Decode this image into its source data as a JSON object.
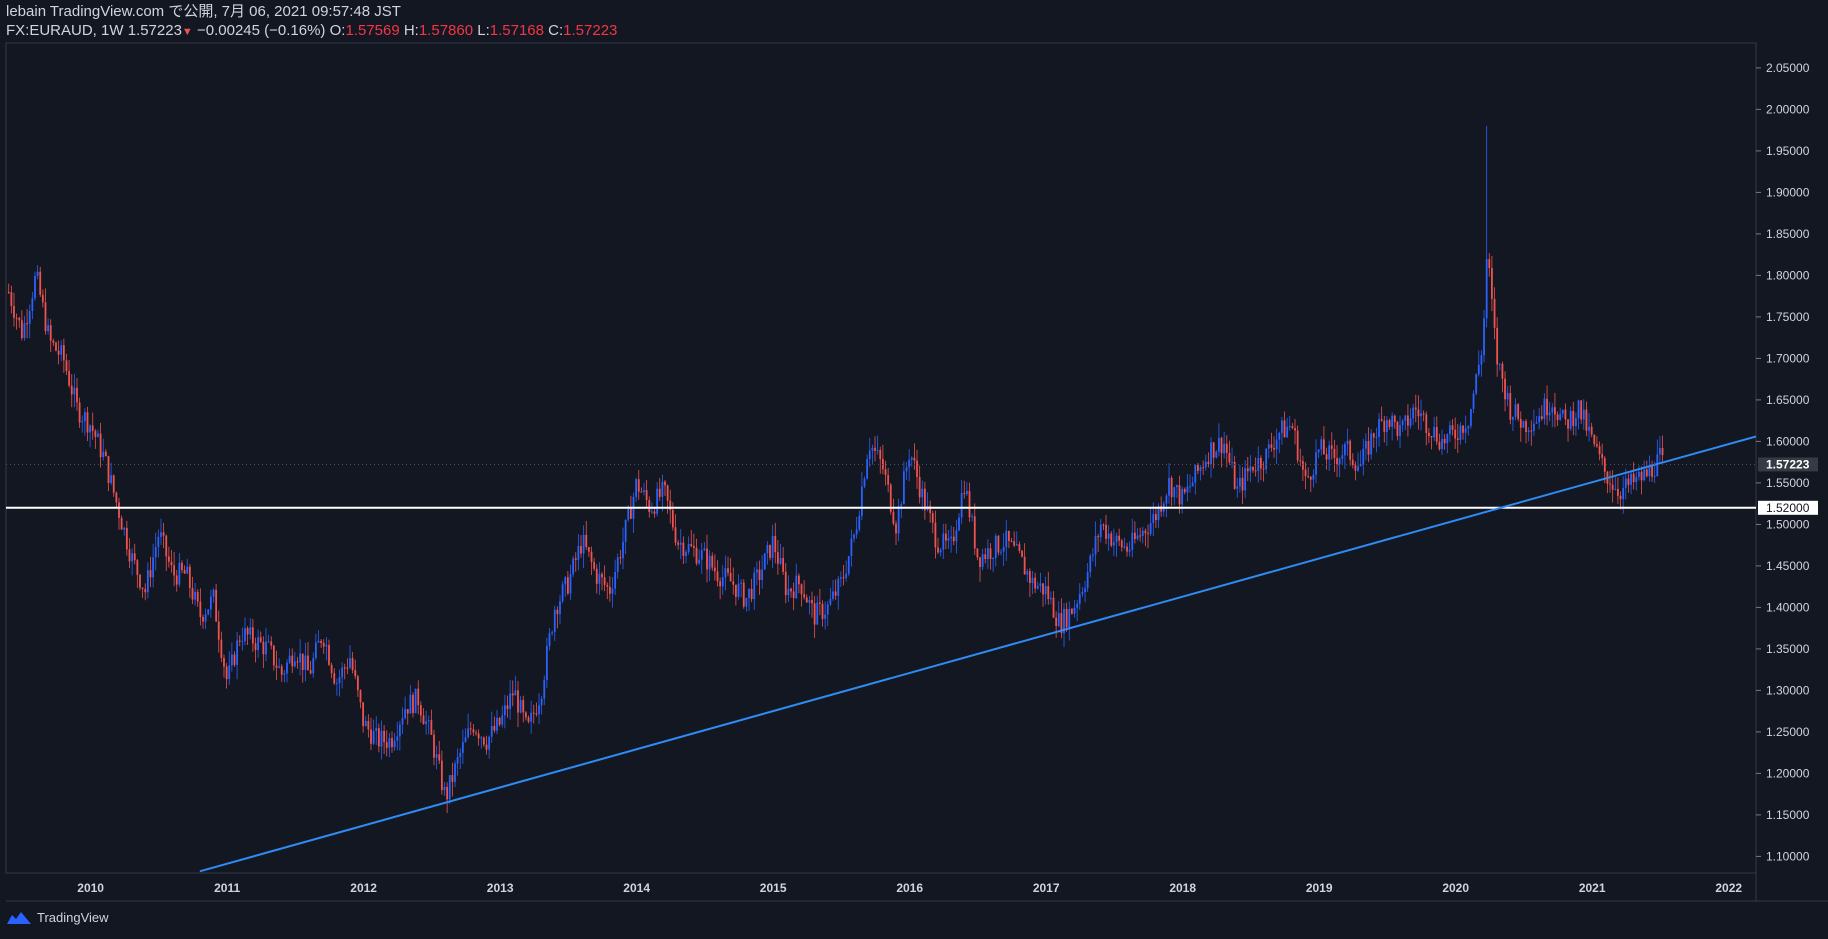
{
  "header": {
    "line1": "lebain TradingView.com で公開, 7月 06, 2021 09:57:48 JST",
    "symbol": "FX:EURAUD, 1W",
    "last": "1.57223",
    "change": "−0.00245 (−0.16%)",
    "o_label": "O:",
    "o": "1.57569",
    "h_label": "H:",
    "h": "1.57860",
    "l_label": "L:",
    "l": "1.57168",
    "c_label": "C:",
    "c": "1.57223"
  },
  "footer": {
    "brand": "TradingView"
  },
  "colors": {
    "bg": "#131722",
    "up": "#2962ff",
    "down": "#ef5350",
    "trend": "#2f8bf5",
    "grid": "#363a45"
  },
  "chart_data": {
    "type": "candlestick",
    "symbol": "EURAUD",
    "interval": "1W",
    "ylim": [
      1.08,
      2.08
    ],
    "xlim": [
      2009.38,
      2022.2
    ],
    "y_ticks": [
      "2.05000",
      "2.00000",
      "1.95000",
      "1.90000",
      "1.85000",
      "1.80000",
      "1.75000",
      "1.70000",
      "1.65000",
      "1.60000",
      "1.55000",
      "1.50000",
      "1.45000",
      "1.40000",
      "1.35000",
      "1.30000",
      "1.25000",
      "1.20000",
      "1.15000",
      "1.10000"
    ],
    "x_ticks": [
      "2010",
      "2011",
      "2012",
      "2013",
      "2014",
      "2015",
      "2016",
      "2017",
      "2018",
      "2019",
      "2020",
      "2021",
      "2022"
    ],
    "price_labels": {
      "last": "1.57223",
      "horizontal": "1.52000"
    },
    "horizontal_level": 1.52,
    "trendline": {
      "x1": 2010.8,
      "y1": 1.082,
      "x2": 2022.2,
      "y2": 1.606
    },
    "close_path": [
      [
        2009.4,
        1.78
      ],
      [
        2009.5,
        1.73
      ],
      [
        2009.6,
        1.8
      ],
      [
        2009.7,
        1.72
      ],
      [
        2009.8,
        1.7
      ],
      [
        2009.9,
        1.64
      ],
      [
        2010.0,
        1.62
      ],
      [
        2010.1,
        1.58
      ],
      [
        2010.2,
        1.52
      ],
      [
        2010.3,
        1.46
      ],
      [
        2010.4,
        1.42
      ],
      [
        2010.5,
        1.49
      ],
      [
        2010.6,
        1.44
      ],
      [
        2010.7,
        1.44
      ],
      [
        2010.8,
        1.39
      ],
      [
        2010.9,
        1.41
      ],
      [
        2011.0,
        1.31
      ],
      [
        2011.1,
        1.37
      ],
      [
        2011.2,
        1.36
      ],
      [
        2011.3,
        1.35
      ],
      [
        2011.4,
        1.32
      ],
      [
        2011.5,
        1.35
      ],
      [
        2011.6,
        1.32
      ],
      [
        2011.7,
        1.37
      ],
      [
        2011.8,
        1.31
      ],
      [
        2011.9,
        1.34
      ],
      [
        2012.0,
        1.26
      ],
      [
        2012.1,
        1.24
      ],
      [
        2012.2,
        1.24
      ],
      [
        2012.3,
        1.28
      ],
      [
        2012.4,
        1.29
      ],
      [
        2012.5,
        1.24
      ],
      [
        2012.6,
        1.17
      ],
      [
        2012.7,
        1.22
      ],
      [
        2012.8,
        1.26
      ],
      [
        2012.9,
        1.24
      ],
      [
        2013.0,
        1.26
      ],
      [
        2013.1,
        1.3
      ],
      [
        2013.2,
        1.25
      ],
      [
        2013.3,
        1.3
      ],
      [
        2013.4,
        1.4
      ],
      [
        2013.5,
        1.43
      ],
      [
        2013.6,
        1.48
      ],
      [
        2013.7,
        1.44
      ],
      [
        2013.8,
        1.42
      ],
      [
        2013.9,
        1.48
      ],
      [
        2014.0,
        1.55
      ],
      [
        2014.1,
        1.52
      ],
      [
        2014.2,
        1.54
      ],
      [
        2014.3,
        1.48
      ],
      [
        2014.4,
        1.47
      ],
      [
        2014.5,
        1.46
      ],
      [
        2014.6,
        1.44
      ],
      [
        2014.7,
        1.43
      ],
      [
        2014.8,
        1.41
      ],
      [
        2014.9,
        1.44
      ],
      [
        2015.0,
        1.48
      ],
      [
        2015.1,
        1.42
      ],
      [
        2015.2,
        1.43
      ],
      [
        2015.3,
        1.39
      ],
      [
        2015.4,
        1.4
      ],
      [
        2015.5,
        1.43
      ],
      [
        2015.6,
        1.49
      ],
      [
        2015.7,
        1.6
      ],
      [
        2015.8,
        1.57
      ],
      [
        2015.9,
        1.5
      ],
      [
        2016.0,
        1.59
      ],
      [
        2016.1,
        1.53
      ],
      [
        2016.2,
        1.48
      ],
      [
        2016.3,
        1.47
      ],
      [
        2016.4,
        1.55
      ],
      [
        2016.5,
        1.46
      ],
      [
        2016.6,
        1.47
      ],
      [
        2016.7,
        1.48
      ],
      [
        2016.8,
        1.46
      ],
      [
        2016.9,
        1.43
      ],
      [
        2017.0,
        1.42
      ],
      [
        2017.1,
        1.38
      ],
      [
        2017.2,
        1.4
      ],
      [
        2017.3,
        1.44
      ],
      [
        2017.4,
        1.5
      ],
      [
        2017.5,
        1.48
      ],
      [
        2017.6,
        1.47
      ],
      [
        2017.7,
        1.49
      ],
      [
        2017.8,
        1.51
      ],
      [
        2017.9,
        1.55
      ],
      [
        2018.0,
        1.53
      ],
      [
        2018.1,
        1.56
      ],
      [
        2018.2,
        1.59
      ],
      [
        2018.3,
        1.6
      ],
      [
        2018.4,
        1.54
      ],
      [
        2018.5,
        1.57
      ],
      [
        2018.6,
        1.58
      ],
      [
        2018.7,
        1.61
      ],
      [
        2018.8,
        1.62
      ],
      [
        2018.9,
        1.55
      ],
      [
        2019.0,
        1.59
      ],
      [
        2019.1,
        1.58
      ],
      [
        2019.2,
        1.59
      ],
      [
        2019.3,
        1.57
      ],
      [
        2019.4,
        1.61
      ],
      [
        2019.5,
        1.63
      ],
      [
        2019.6,
        1.61
      ],
      [
        2019.7,
        1.64
      ],
      [
        2019.8,
        1.62
      ],
      [
        2019.9,
        1.6
      ],
      [
        2020.0,
        1.61
      ],
      [
        2020.1,
        1.63
      ],
      [
        2020.2,
        1.72
      ],
      [
        2020.23,
        1.83
      ],
      [
        2020.3,
        1.7
      ],
      [
        2020.4,
        1.64
      ],
      [
        2020.5,
        1.62
      ],
      [
        2020.6,
        1.63
      ],
      [
        2020.7,
        1.65
      ],
      [
        2020.8,
        1.62
      ],
      [
        2020.9,
        1.64
      ],
      [
        2021.0,
        1.6
      ],
      [
        2021.1,
        1.56
      ],
      [
        2021.2,
        1.54
      ],
      [
        2021.3,
        1.55
      ],
      [
        2021.4,
        1.56
      ],
      [
        2021.5,
        1.58
      ],
      [
        2021.52,
        1.5722
      ]
    ],
    "peak": {
      "x": 2020.22,
      "high": 1.98
    }
  }
}
